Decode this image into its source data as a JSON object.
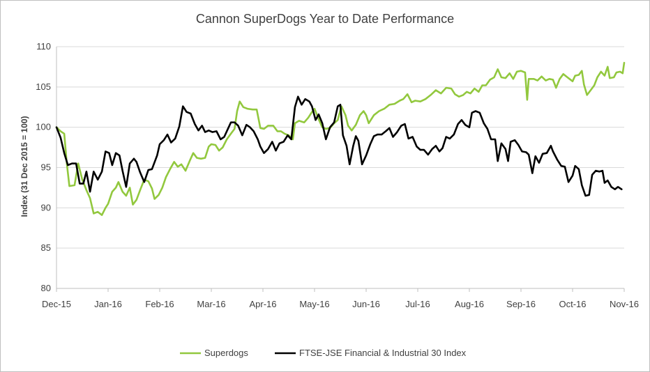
{
  "chart_data": {
    "type": "line",
    "title": "Cannon SuperDogs Year to Date Performance",
    "xlabel": "",
    "ylabel": "Index (31 Dec 2015 = 100)",
    "ylim": [
      80,
      110
    ],
    "yticks": [
      80,
      85,
      90,
      95,
      100,
      105,
      110
    ],
    "xlim": [
      0,
      11
    ],
    "xtick_labels": [
      "Dec-15",
      "Jan-16",
      "Feb-16",
      "Mar-16",
      "Apr-16",
      "May-16",
      "Jun-16",
      "Jul-16",
      "Aug-16",
      "Sep-16",
      "Oct-16",
      "Nov-16"
    ],
    "grid": "horizontal",
    "legend_position": "bottom",
    "series": [
      {
        "name": "Superdogs",
        "color": "#92c83e",
        "points": [
          [
            0,
            100
          ],
          [
            0.08,
            99.5
          ],
          [
            0.15,
            99.2
          ],
          [
            0.2,
            95.5
          ],
          [
            0.25,
            92.7
          ],
          [
            0.35,
            92.8
          ],
          [
            0.42,
            95.5
          ],
          [
            0.5,
            93.5
          ],
          [
            0.58,
            92.2
          ],
          [
            0.65,
            91.2
          ],
          [
            0.72,
            89.3
          ],
          [
            0.8,
            89.5
          ],
          [
            0.88,
            89.1
          ],
          [
            0.95,
            90
          ],
          [
            1.0,
            90.5
          ],
          [
            1.08,
            92
          ],
          [
            1.15,
            92.5
          ],
          [
            1.2,
            93.2
          ],
          [
            1.28,
            92
          ],
          [
            1.35,
            91.5
          ],
          [
            1.42,
            92.5
          ],
          [
            1.48,
            90.4
          ],
          [
            1.55,
            91
          ],
          [
            1.62,
            92.2
          ],
          [
            1.7,
            93.5
          ],
          [
            1.78,
            93.3
          ],
          [
            1.85,
            92.4
          ],
          [
            1.9,
            91.1
          ],
          [
            1.98,
            91.6
          ],
          [
            2.05,
            92.5
          ],
          [
            2.12,
            93.8
          ],
          [
            2.2,
            94.8
          ],
          [
            2.28,
            95.7
          ],
          [
            2.35,
            95.1
          ],
          [
            2.42,
            95.4
          ],
          [
            2.5,
            94.6
          ],
          [
            2.58,
            95.8
          ],
          [
            2.65,
            96.8
          ],
          [
            2.72,
            96.2
          ],
          [
            2.8,
            96.1
          ],
          [
            2.88,
            96.2
          ],
          [
            2.95,
            97.6
          ],
          [
            3.0,
            97.9
          ],
          [
            3.08,
            97.8
          ],
          [
            3.15,
            97.1
          ],
          [
            3.22,
            97.5
          ],
          [
            3.3,
            98.5
          ],
          [
            3.38,
            99.2
          ],
          [
            3.45,
            99.8
          ],
          [
            3.5,
            102
          ],
          [
            3.55,
            103.2
          ],
          [
            3.62,
            102.5
          ],
          [
            3.7,
            102.3
          ],
          [
            3.8,
            102.2
          ],
          [
            3.88,
            102.2
          ],
          [
            3.95,
            99.9
          ],
          [
            4.02,
            99.8
          ],
          [
            4.1,
            100.2
          ],
          [
            4.2,
            100.2
          ],
          [
            4.28,
            99.5
          ],
          [
            4.35,
            99.5
          ],
          [
            4.42,
            99.2
          ],
          [
            4.5,
            99
          ],
          [
            4.58,
            98.5
          ],
          [
            4.62,
            100.5
          ],
          [
            4.7,
            100.8
          ],
          [
            4.8,
            100.6
          ],
          [
            4.88,
            101.2
          ],
          [
            4.95,
            101.9
          ],
          [
            5.0,
            102.3
          ],
          [
            5.08,
            101
          ],
          [
            5.15,
            100
          ],
          [
            5.22,
            99.8
          ],
          [
            5.3,
            99.9
          ],
          [
            5.38,
            100.5
          ],
          [
            5.45,
            100.9
          ],
          [
            5.52,
            102.6
          ],
          [
            5.6,
            101.5
          ],
          [
            5.65,
            100.2
          ],
          [
            5.72,
            99.6
          ],
          [
            5.8,
            100.3
          ],
          [
            5.88,
            101.5
          ],
          [
            5.95,
            102
          ],
          [
            6.0,
            101.5
          ],
          [
            6.05,
            100.5
          ],
          [
            6.15,
            101.5
          ],
          [
            6.25,
            102
          ],
          [
            6.35,
            102.3
          ],
          [
            6.45,
            102.8
          ],
          [
            6.55,
            102.9
          ],
          [
            6.65,
            103.3
          ],
          [
            6.72,
            103.5
          ],
          [
            6.8,
            104.1
          ],
          [
            6.88,
            103.1
          ],
          [
            6.95,
            103.3
          ],
          [
            7.05,
            103.2
          ],
          [
            7.15,
            103.5
          ],
          [
            7.25,
            104
          ],
          [
            7.35,
            104.6
          ],
          [
            7.45,
            104.2
          ],
          [
            7.55,
            104.9
          ],
          [
            7.65,
            104.8
          ],
          [
            7.72,
            104.1
          ],
          [
            7.8,
            103.8
          ],
          [
            7.88,
            104
          ],
          [
            7.95,
            104.4
          ],
          [
            8.02,
            104.2
          ],
          [
            8.1,
            104.8
          ],
          [
            8.18,
            104.4
          ],
          [
            8.25,
            105.2
          ],
          [
            8.32,
            105.2
          ],
          [
            8.4,
            105.9
          ],
          [
            8.48,
            106.2
          ],
          [
            8.55,
            107.2
          ],
          [
            8.62,
            106.2
          ],
          [
            8.7,
            106.1
          ],
          [
            8.78,
            106.7
          ],
          [
            8.85,
            106
          ],
          [
            8.92,
            106.9
          ],
          [
            9.0,
            107
          ],
          [
            9.08,
            106.8
          ],
          [
            9.12,
            103.4
          ],
          [
            9.15,
            106
          ],
          [
            9.25,
            106
          ],
          [
            9.32,
            105.8
          ],
          [
            9.4,
            106.3
          ],
          [
            9.48,
            105.8
          ],
          [
            9.55,
            106
          ],
          [
            9.62,
            105.9
          ],
          [
            9.68,
            104.9
          ],
          [
            9.75,
            106
          ],
          [
            9.82,
            106.6
          ],
          [
            9.9,
            106.2
          ],
          [
            10.0,
            105.7
          ],
          [
            10.05,
            106.4
          ],
          [
            10.12,
            106.5
          ],
          [
            10.18,
            107
          ],
          [
            10.22,
            105.3
          ],
          [
            10.28,
            104
          ],
          [
            10.35,
            104.6
          ],
          [
            10.42,
            105.2
          ],
          [
            10.48,
            106.2
          ],
          [
            10.55,
            106.9
          ],
          [
            10.62,
            106.4
          ],
          [
            10.68,
            107.5
          ],
          [
            10.72,
            106.1
          ],
          [
            10.8,
            106.2
          ],
          [
            10.85,
            106.8
          ],
          [
            10.92,
            106.9
          ],
          [
            10.97,
            106.7
          ],
          [
            11.0,
            108
          ]
        ]
      },
      {
        "name": "FTSE-JSE Financial & Industrial 30 Index",
        "color": "#000000",
        "points": [
          [
            0,
            100
          ],
          [
            0.08,
            98.7
          ],
          [
            0.15,
            96.8
          ],
          [
            0.22,
            95.3
          ],
          [
            0.3,
            95.5
          ],
          [
            0.38,
            95.5
          ],
          [
            0.45,
            93
          ],
          [
            0.52,
            93
          ],
          [
            0.58,
            94.5
          ],
          [
            0.65,
            92
          ],
          [
            0.72,
            94.5
          ],
          [
            0.8,
            93.5
          ],
          [
            0.88,
            94.5
          ],
          [
            0.95,
            97
          ],
          [
            1.02,
            96.8
          ],
          [
            1.08,
            95.3
          ],
          [
            1.15,
            96.8
          ],
          [
            1.22,
            96.5
          ],
          [
            1.28,
            94.6
          ],
          [
            1.35,
            92.6
          ],
          [
            1.42,
            95.5
          ],
          [
            1.5,
            96.1
          ],
          [
            1.55,
            95.7
          ],
          [
            1.62,
            94.4
          ],
          [
            1.7,
            93.2
          ],
          [
            1.78,
            94.7
          ],
          [
            1.85,
            94.8
          ],
          [
            1.95,
            96.5
          ],
          [
            2.0,
            97.9
          ],
          [
            2.08,
            98.4
          ],
          [
            2.15,
            99.1
          ],
          [
            2.22,
            98.1
          ],
          [
            2.3,
            98.6
          ],
          [
            2.38,
            100.1
          ],
          [
            2.45,
            102.6
          ],
          [
            2.52,
            101.9
          ],
          [
            2.6,
            101.7
          ],
          [
            2.68,
            100.4
          ],
          [
            2.75,
            99.6
          ],
          [
            2.82,
            100.2
          ],
          [
            2.88,
            99.4
          ],
          [
            2.95,
            99.6
          ],
          [
            3.02,
            99.4
          ],
          [
            3.1,
            99.5
          ],
          [
            3.18,
            98.5
          ],
          [
            3.25,
            98.8
          ],
          [
            3.3,
            99.5
          ],
          [
            3.38,
            100.6
          ],
          [
            3.45,
            100.6
          ],
          [
            3.52,
            100.2
          ],
          [
            3.6,
            99
          ],
          [
            3.68,
            100.3
          ],
          [
            3.75,
            100
          ],
          [
            3.82,
            99.5
          ],
          [
            3.9,
            98.5
          ],
          [
            3.95,
            97.6
          ],
          [
            4.02,
            96.8
          ],
          [
            4.1,
            97.3
          ],
          [
            4.18,
            98.2
          ],
          [
            4.25,
            97.1
          ],
          [
            4.32,
            98
          ],
          [
            4.4,
            98.2
          ],
          [
            4.48,
            99
          ],
          [
            4.55,
            98.5
          ],
          [
            4.62,
            102.5
          ],
          [
            4.68,
            103.8
          ],
          [
            4.75,
            102.8
          ],
          [
            4.82,
            103.5
          ],
          [
            4.9,
            103.2
          ],
          [
            4.95,
            102.6
          ],
          [
            5.02,
            100.9
          ],
          [
            5.08,
            101.6
          ],
          [
            5.15,
            100.5
          ],
          [
            5.22,
            98.5
          ],
          [
            5.3,
            100
          ],
          [
            5.38,
            100.6
          ],
          [
            5.45,
            102.6
          ],
          [
            5.5,
            102.8
          ],
          [
            5.55,
            99
          ],
          [
            5.62,
            97.7
          ],
          [
            5.68,
            95.4
          ],
          [
            5.75,
            97.7
          ],
          [
            5.8,
            98.9
          ],
          [
            5.85,
            98.3
          ],
          [
            5.92,
            95.4
          ],
          [
            6.0,
            96.5
          ],
          [
            6.08,
            97.9
          ],
          [
            6.15,
            98.9
          ],
          [
            6.22,
            99.1
          ],
          [
            6.3,
            99.1
          ],
          [
            6.38,
            99.5
          ],
          [
            6.45,
            99.9
          ],
          [
            6.52,
            98.8
          ],
          [
            6.6,
            99.4
          ],
          [
            6.68,
            100.2
          ],
          [
            6.75,
            100.4
          ],
          [
            6.82,
            98.6
          ],
          [
            6.9,
            98.8
          ],
          [
            6.98,
            97.6
          ],
          [
            7.05,
            97.2
          ],
          [
            7.12,
            97.2
          ],
          [
            7.2,
            96.6
          ],
          [
            7.28,
            97.3
          ],
          [
            7.35,
            97.7
          ],
          [
            7.42,
            97
          ],
          [
            7.48,
            97.4
          ],
          [
            7.55,
            98.8
          ],
          [
            7.62,
            98.6
          ],
          [
            7.7,
            99.1
          ],
          [
            7.78,
            100.4
          ],
          [
            7.85,
            100.9
          ],
          [
            7.92,
            100.3
          ],
          [
            8.0,
            100
          ],
          [
            8.05,
            101.8
          ],
          [
            8.12,
            102
          ],
          [
            8.2,
            101.8
          ],
          [
            8.28,
            100.5
          ],
          [
            8.35,
            99.8
          ],
          [
            8.42,
            98.5
          ],
          [
            8.5,
            98.5
          ],
          [
            8.55,
            95.8
          ],
          [
            8.62,
            98
          ],
          [
            8.7,
            97.3
          ],
          [
            8.75,
            95.8
          ],
          [
            8.8,
            98.2
          ],
          [
            8.88,
            98.4
          ],
          [
            8.95,
            97.8
          ],
          [
            9.02,
            97
          ],
          [
            9.1,
            96.9
          ],
          [
            9.15,
            96.6
          ],
          [
            9.22,
            94.3
          ],
          [
            9.28,
            96.4
          ],
          [
            9.35,
            95.6
          ],
          [
            9.42,
            96.7
          ],
          [
            9.5,
            96.8
          ],
          [
            9.58,
            97.7
          ],
          [
            9.62,
            97
          ],
          [
            9.7,
            96
          ],
          [
            9.78,
            95.2
          ],
          [
            9.85,
            95.1
          ],
          [
            9.92,
            93.2
          ],
          [
            10.0,
            94
          ],
          [
            10.05,
            95.2
          ],
          [
            10.12,
            94.8
          ],
          [
            10.18,
            92.8
          ],
          [
            10.25,
            91.5
          ],
          [
            10.32,
            91.6
          ],
          [
            10.38,
            94.1
          ],
          [
            10.45,
            94.6
          ],
          [
            10.52,
            94.5
          ],
          [
            10.58,
            94.6
          ],
          [
            10.62,
            93.1
          ],
          [
            10.68,
            93.4
          ],
          [
            10.75,
            92.6
          ],
          [
            10.82,
            92.3
          ],
          [
            10.88,
            92.6
          ],
          [
            10.95,
            92.3
          ]
        ]
      }
    ]
  }
}
